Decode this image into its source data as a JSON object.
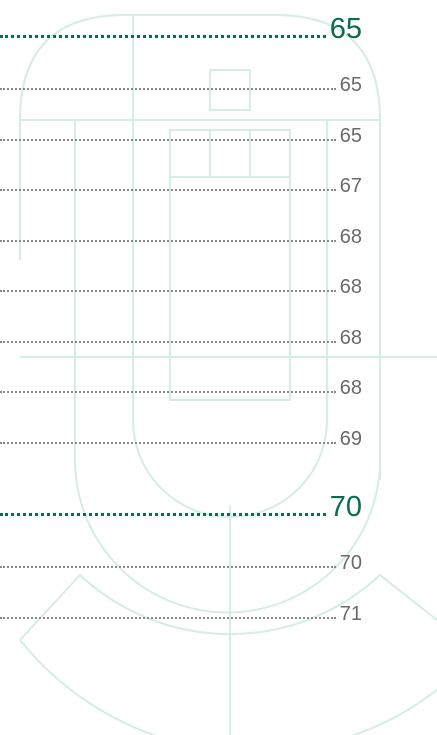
{
  "toc": {
    "sections": [
      {
        "page": 65,
        "items": [
          65,
          65,
          67,
          68,
          68,
          68,
          68,
          69
        ]
      },
      {
        "page": 70,
        "items": [
          70,
          71
        ]
      }
    ]
  }
}
